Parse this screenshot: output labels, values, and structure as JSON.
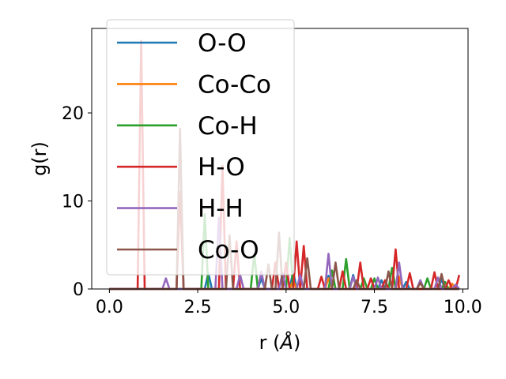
{
  "chart_data": {
    "type": "line",
    "title": "",
    "xlabel": "r (",
    "xlabel_italic": "Å",
    "xlabel_suffix": ")",
    "ylabel": "g(r)",
    "xlim": [
      -0.5,
      10.15
    ],
    "ylim": [
      0,
      29.6
    ],
    "xticks": [
      "0.0",
      "2.5",
      "5.0",
      "7.5",
      "10.0"
    ],
    "xtick_values": [
      0,
      2.5,
      5,
      7.5,
      10
    ],
    "yticks": [
      "0",
      "10",
      "20"
    ],
    "ytick_values": [
      0,
      10,
      20
    ],
    "grid": false,
    "legend_position": "top-left",
    "dr": 0.1,
    "r_max": 9.9,
    "series": [
      {
        "name": "O-O",
        "color": "#1f77b4",
        "peaks": [
          [
            2.8,
            1.8
          ],
          [
            4.3,
            1.2
          ],
          [
            5.2,
            2.0
          ],
          [
            6.2,
            1.5
          ],
          [
            6.9,
            1.6
          ],
          [
            7.7,
            1.0
          ],
          [
            8.4,
            0.8
          ],
          [
            9.4,
            1.1
          ]
        ]
      },
      {
        "name": "Co-Co",
        "color": "#ff7f0e",
        "peaks": [
          [
            5.2,
            1.0
          ],
          [
            6.2,
            1.2
          ],
          [
            8.2,
            1.4
          ],
          [
            9.7,
            0.6
          ]
        ]
      },
      {
        "name": "Co-H",
        "color": "#2ca02c",
        "peaks": [
          [
            2.7,
            8.5
          ],
          [
            4.1,
            4.0
          ],
          [
            5.1,
            5.8
          ],
          [
            6.3,
            2.1
          ],
          [
            6.7,
            3.4
          ],
          [
            7.2,
            1.2
          ],
          [
            7.5,
            1.2
          ],
          [
            8.0,
            2.4
          ],
          [
            9.0,
            1.2
          ],
          [
            9.5,
            0.8
          ]
        ]
      },
      {
        "name": "H-O",
        "color": "#d62728",
        "peaks": [
          [
            0.9,
            28.2
          ],
          [
            2.0,
            11.0
          ],
          [
            3.2,
            14.0
          ],
          [
            3.6,
            5.4
          ],
          [
            4.7,
            3.0
          ],
          [
            5.0,
            3.0
          ],
          [
            5.3,
            5.4
          ],
          [
            5.5,
            4.9
          ],
          [
            6.0,
            1.4
          ],
          [
            6.6,
            2.0
          ],
          [
            7.1,
            3.0
          ],
          [
            7.4,
            1.2
          ],
          [
            7.8,
            1.0
          ],
          [
            8.1,
            4.5
          ],
          [
            8.5,
            1.8
          ],
          [
            9.2,
            1.9
          ],
          [
            9.6,
            1.0
          ],
          [
            9.9,
            1.6
          ]
        ]
      },
      {
        "name": "H-H",
        "color": "#9467bd",
        "peaks": [
          [
            1.6,
            1.2
          ],
          [
            3.1,
            8.1
          ],
          [
            3.7,
            1.6
          ],
          [
            4.3,
            2.0
          ],
          [
            4.9,
            1.8
          ],
          [
            5.4,
            1.6
          ],
          [
            6.2,
            4.0
          ],
          [
            6.9,
            1.4
          ],
          [
            7.6,
            1.3
          ],
          [
            8.2,
            3.0
          ],
          [
            8.8,
            1.0
          ],
          [
            9.3,
            1.3
          ],
          [
            9.8,
            0.5
          ]
        ]
      },
      {
        "name": "Co-O",
        "color": "#8c564b",
        "peaks": [
          [
            2.0,
            18.2
          ],
          [
            3.4,
            6.1
          ],
          [
            4.5,
            2.8
          ],
          [
            4.8,
            6.4
          ],
          [
            5.6,
            3.5
          ],
          [
            6.4,
            3.0
          ],
          [
            7.0,
            1.0
          ],
          [
            7.9,
            2.0
          ],
          [
            8.8,
            0.7
          ],
          [
            9.4,
            1.7
          ]
        ]
      }
    ]
  }
}
